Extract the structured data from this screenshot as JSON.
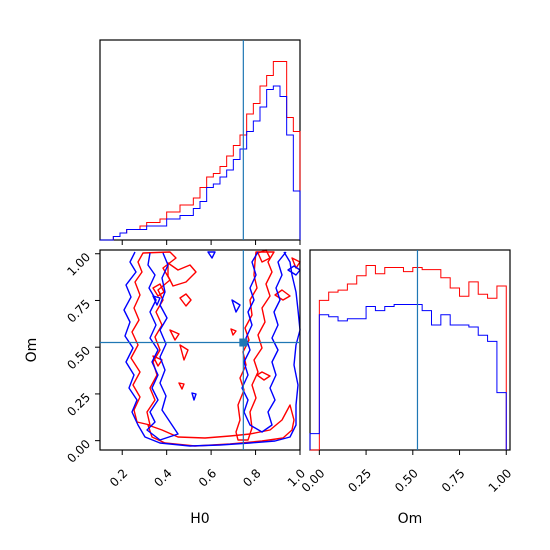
{
  "chart_data": [
    {
      "panel": "hist-H0",
      "type": "histogram",
      "xlim": [
        0.1,
        1.0
      ],
      "bin_edges": [
        0.1,
        0.13,
        0.16,
        0.19,
        0.22,
        0.25,
        0.28,
        0.31,
        0.34,
        0.37,
        0.4,
        0.43,
        0.46,
        0.49,
        0.52,
        0.55,
        0.58,
        0.61,
        0.64,
        0.67,
        0.7,
        0.73,
        0.76,
        0.79,
        0.82,
        0.85,
        0.88,
        0.91,
        0.94,
        0.97,
        1.0
      ],
      "series": [
        {
          "color": "#ff0000",
          "values": [
            0,
            0,
            1,
            2,
            3,
            3,
            4,
            5,
            5,
            6,
            8,
            8,
            10,
            10,
            12,
            15,
            18,
            19,
            21,
            24,
            27,
            30,
            36,
            39,
            44,
            47,
            51,
            51,
            35,
            31
          ]
        },
        {
          "color": "#0000ff",
          "values": [
            0,
            0,
            1,
            2,
            3,
            3,
            3,
            4,
            4,
            4,
            6,
            6,
            7,
            7,
            9,
            11,
            15,
            16,
            18,
            20,
            23,
            26,
            31,
            34,
            38,
            43,
            44,
            41,
            30,
            14
          ]
        }
      ],
      "reference_line": {
        "axis": "x",
        "value": 0.745,
        "color": "#1f77b4"
      }
    },
    {
      "panel": "contour-H0-Om",
      "type": "contour",
      "xlim": [
        0.1,
        1.0
      ],
      "ylim": [
        -0.05,
        1.02
      ],
      "x_ticks": [
        "0.2",
        "0.4",
        "0.6",
        "0.8",
        "1.0"
      ],
      "y_ticks": [
        "0.00",
        "0.25",
        "0.50",
        "0.75",
        "1.00"
      ],
      "xlabel": "H0",
      "ylabel": "Om",
      "series": [
        {
          "color": "#ff0000"
        },
        {
          "color": "#0000ff"
        }
      ],
      "reference_point": {
        "x": 0.745,
        "y": 0.525,
        "color": "#1f77b4"
      }
    },
    {
      "panel": "hist-Om",
      "type": "histogram",
      "xlim": [
        -0.05,
        1.02
      ],
      "x_ticks": [
        "0.00",
        "0.25",
        "0.50",
        "0.75",
        "1.00"
      ],
      "xlabel": "Om",
      "bin_edges": [
        -0.05,
        0.0,
        0.05,
        0.1,
        0.15,
        0.2,
        0.25,
        0.3,
        0.35,
        0.4,
        0.45,
        0.5,
        0.55,
        0.6,
        0.65,
        0.7,
        0.75,
        0.8,
        0.85,
        0.9,
        0.95,
        1.0
      ],
      "series": [
        {
          "color": "#ff0000",
          "values": [
            0,
            73,
            77,
            78,
            81,
            85,
            90,
            86,
            89,
            89,
            87,
            89,
            88,
            88,
            84,
            79,
            75,
            82,
            76,
            74,
            80
          ]
        },
        {
          "color": "#0000ff",
          "values": [
            8,
            66,
            65,
            63,
            64,
            64,
            70,
            68,
            70,
            71,
            71,
            71,
            68,
            61,
            66,
            61,
            61,
            60,
            56,
            53,
            28
          ]
        }
      ],
      "reference_line": {
        "axis": "x",
        "value": 0.525,
        "color": "#1f77b4"
      }
    }
  ]
}
